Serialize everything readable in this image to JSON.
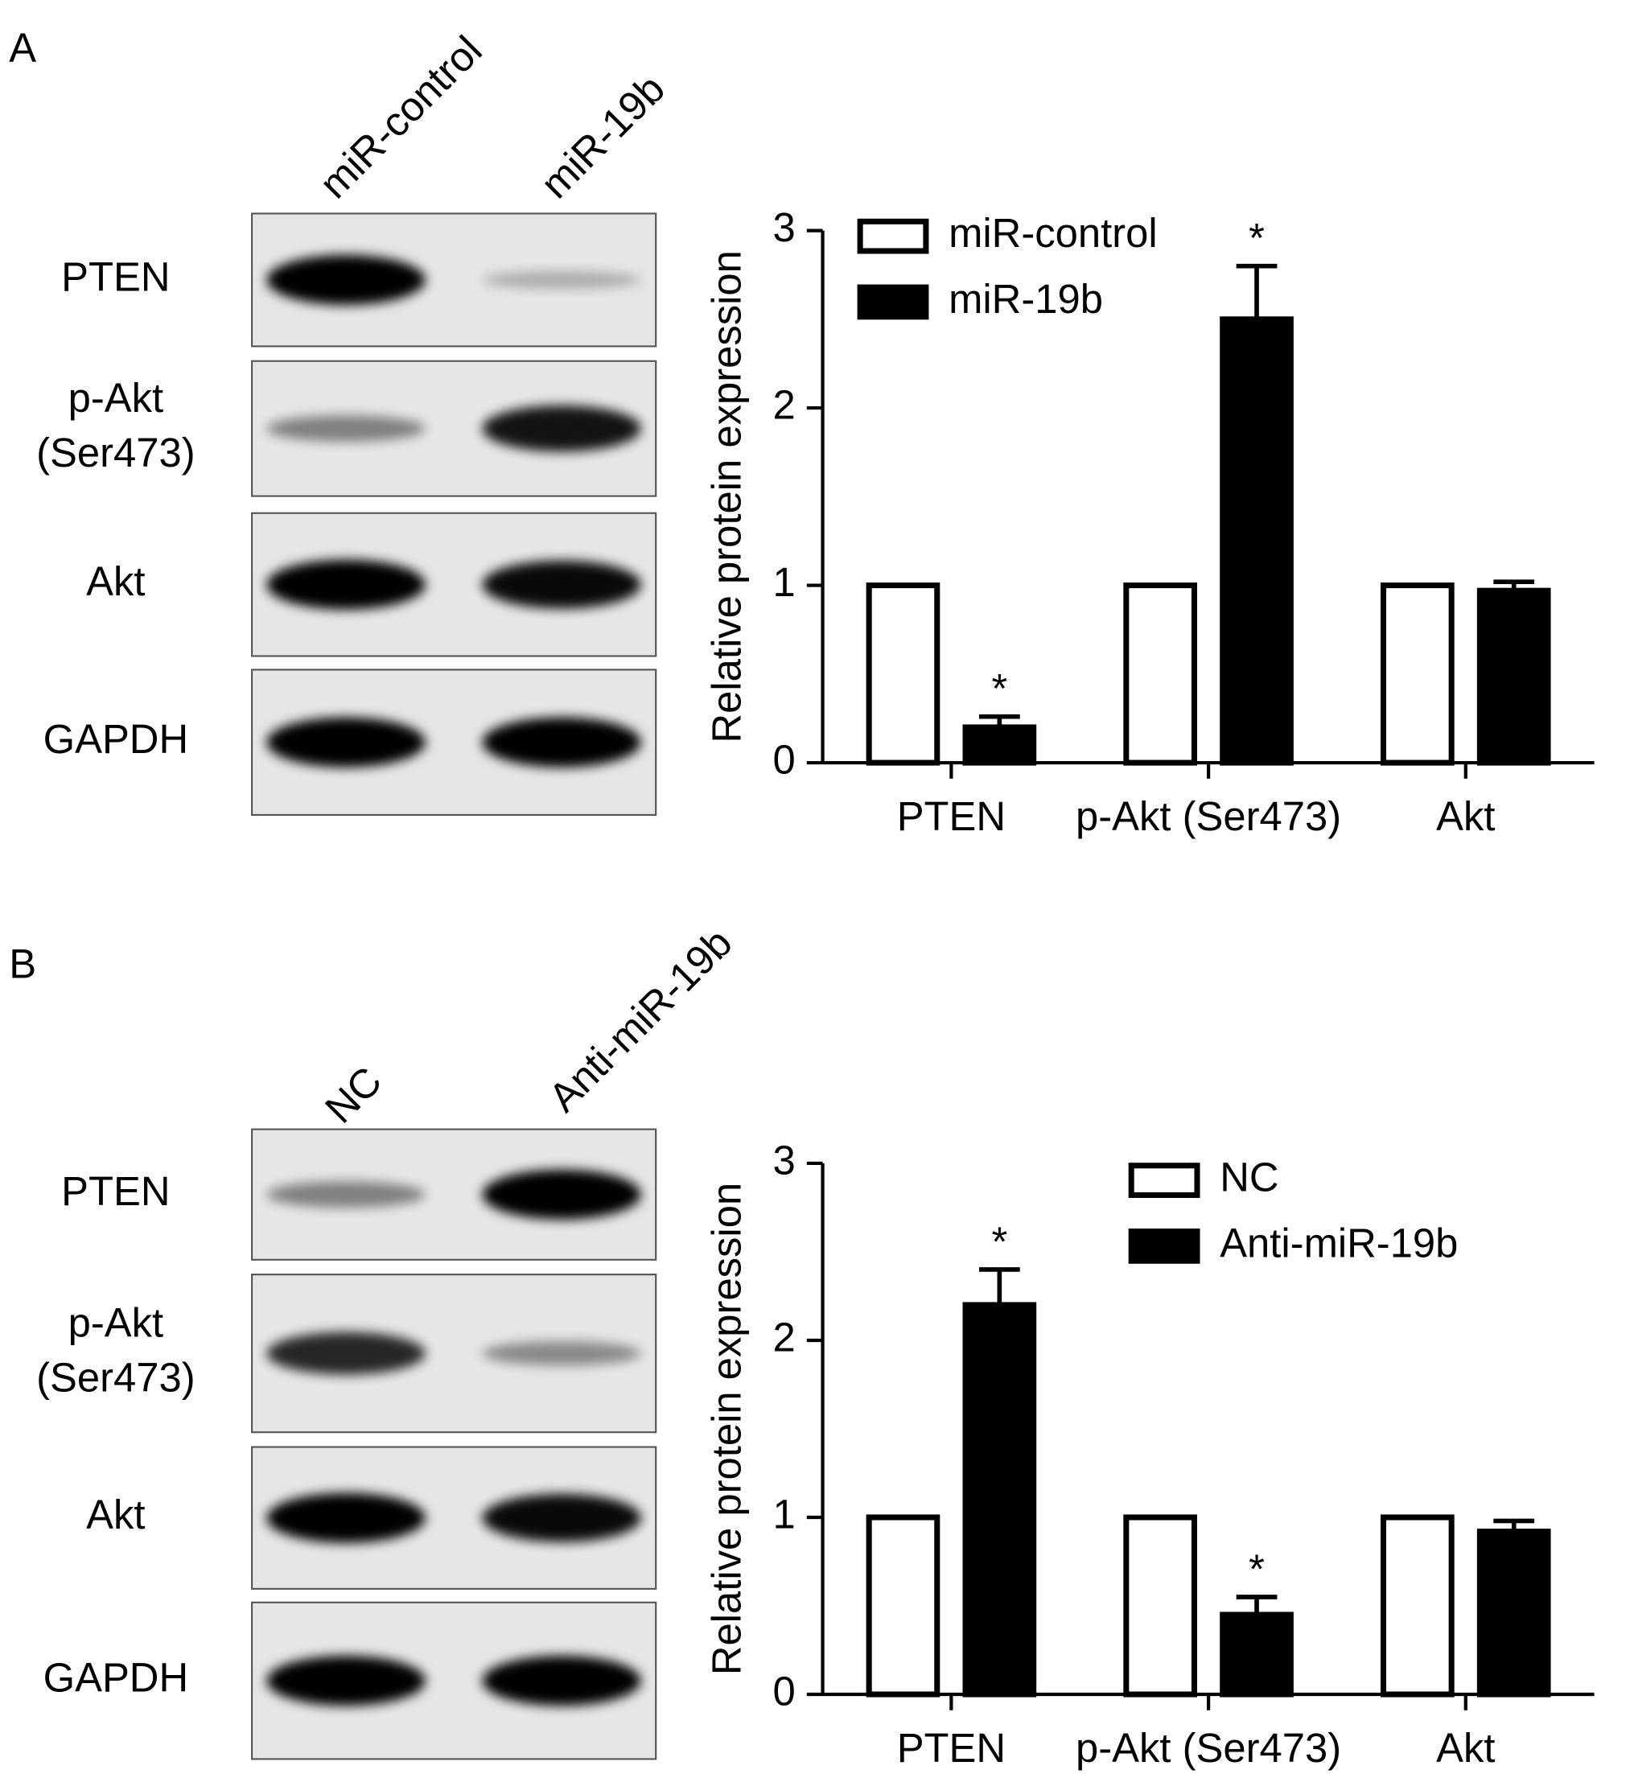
{
  "panels": [
    {
      "label": "A",
      "lanes": [
        "miR-control",
        "miR-19b"
      ],
      "proteins": [
        [
          "PTEN"
        ],
        [
          "p-Akt",
          "(Ser473)"
        ],
        [
          "Akt"
        ],
        [
          "GAPDH"
        ]
      ]
    },
    {
      "label": "B",
      "lanes": [
        "NC",
        "Anti-miR-19b"
      ],
      "proteins": [
        [
          "PTEN"
        ],
        [
          "p-Akt",
          "(Ser473)"
        ],
        [
          "Akt"
        ],
        [
          "GAPDH"
        ]
      ]
    }
  ],
  "chart_data": [
    {
      "type": "bar",
      "ylabel": "Relative protein expression",
      "categories": [
        "PTEN",
        "p-Akt (Ser473)",
        "Akt"
      ],
      "series": [
        {
          "name": "miR-control",
          "color": "#ffffff",
          "edgecolor": "#000000",
          "values": [
            1,
            1,
            1
          ]
        },
        {
          "name": "miR-19b",
          "color": "#000000",
          "edgecolor": "#000000",
          "values": [
            0.2,
            2.5,
            0.97
          ],
          "errors": [
            0.06,
            0.3,
            0.05
          ],
          "significance": [
            "*",
            "*",
            null
          ]
        }
      ],
      "ylim": [
        0,
        3
      ],
      "yticks": [
        0,
        1,
        2,
        3
      ]
    },
    {
      "type": "bar",
      "ylabel": "Relative protein expression",
      "categories": [
        "PTEN",
        "p-Akt (Ser473)",
        "Akt"
      ],
      "series": [
        {
          "name": "NC",
          "color": "#ffffff",
          "edgecolor": "#000000",
          "values": [
            1,
            1,
            1
          ]
        },
        {
          "name": "Anti-miR-19b",
          "color": "#000000",
          "edgecolor": "#000000",
          "values": [
            2.2,
            0.45,
            0.92
          ],
          "errors": [
            0.2,
            0.1,
            0.06
          ],
          "significance": [
            "*",
            "*",
            null
          ]
        }
      ],
      "ylim": [
        0,
        3
      ],
      "yticks": [
        0,
        1,
        2,
        3
      ]
    }
  ]
}
